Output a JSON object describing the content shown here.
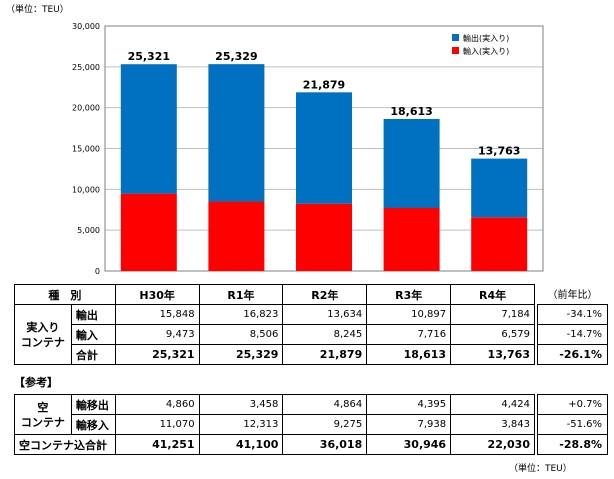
{
  "unit_label": "（単位：TEU）",
  "chart_data": {
    "type": "bar",
    "stacked": true,
    "categories": [
      "H30年",
      "R1年",
      "R2年",
      "R3年",
      "R4年"
    ],
    "series": [
      {
        "name": "輸入(実入り)",
        "values": [
          9473,
          8506,
          8245,
          7716,
          6579
        ],
        "color": "#ff0000"
      },
      {
        "name": "輸出(実入り)",
        "values": [
          15848,
          16823,
          13634,
          10897,
          7184
        ],
        "color": "#0070c0"
      }
    ],
    "totals": [
      "25,321",
      "25,329",
      "21,879",
      "18,613",
      "13,763"
    ],
    "ylim": [
      0,
      30000
    ],
    "yticks": [
      "0",
      "5,000",
      "10,000",
      "15,000",
      "20,000",
      "25,000",
      "30,000"
    ],
    "legend_position": "top-right",
    "grid": true
  },
  "table": {
    "header": {
      "label": "種　別",
      "years": [
        "H30年",
        "R1年",
        "R2年",
        "R3年",
        "R4年"
      ],
      "rate_label": "（前年比）"
    },
    "full": {
      "group_label": "実入り\nコンテナ",
      "rows": [
        {
          "label": "輸出",
          "values": [
            "15,848",
            "16,823",
            "13,634",
            "10,897",
            "7,184"
          ],
          "rate": "-34.1%"
        },
        {
          "label": "輸入",
          "values": [
            "9,473",
            "8,506",
            "8,245",
            "7,716",
            "6,579"
          ],
          "rate": "-14.7%"
        },
        {
          "label": "合計",
          "values": [
            "25,321",
            "25,329",
            "21,879",
            "18,613",
            "13,763"
          ],
          "rate": "-26.1%"
        }
      ]
    },
    "reference_label": "【参考】",
    "empty": {
      "group_label": "空\nコンテナ",
      "rows": [
        {
          "label": "輸移出",
          "values": [
            "4,860",
            "3,458",
            "4,864",
            "4,395",
            "4,424"
          ],
          "rate": "+0.7%"
        },
        {
          "label": "輸移入",
          "values": [
            "11,070",
            "12,313",
            "9,275",
            "7,938",
            "3,843"
          ],
          "rate": "-51.6%"
        }
      ]
    },
    "grand_total": {
      "label": "空コンテナ込合計",
      "values": [
        "41,251",
        "41,100",
        "36,018",
        "30,946",
        "22,030"
      ],
      "rate": "-28.8%"
    }
  }
}
